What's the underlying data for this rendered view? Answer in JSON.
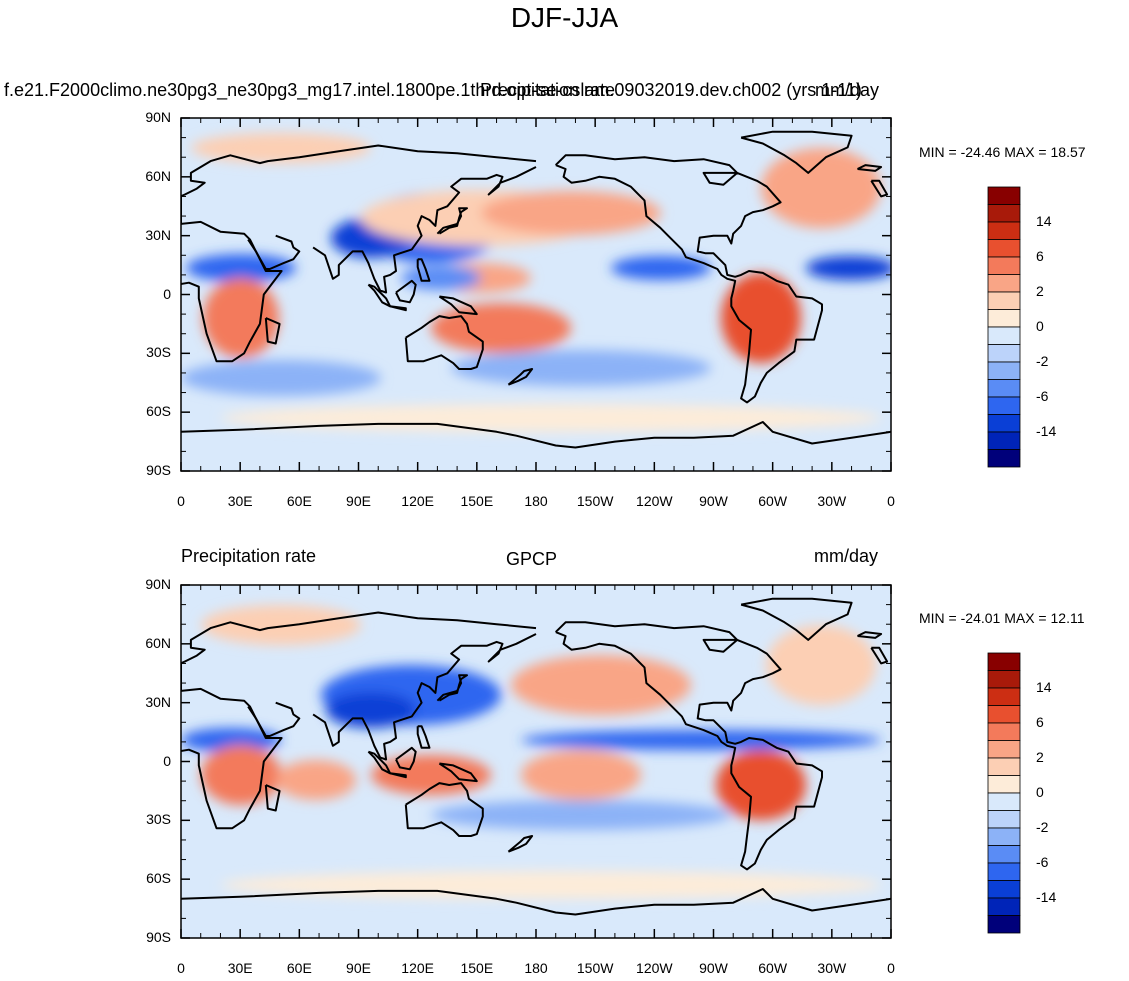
{
  "figure": {
    "title": "DJF-JJA"
  },
  "palette": [
    "#00007a",
    "#0024b8",
    "#0a3fd6",
    "#2e66f0",
    "#5a8cf5",
    "#8cb2f7",
    "#bcd3fa",
    "#d9e9fb",
    "#fdecd9",
    "#fccfb4",
    "#f9a586",
    "#f37a5b",
    "#e8502f",
    "#cc2e13",
    "#a81a0a",
    "#880000"
  ],
  "map_colors": {
    "ocean": "#d9e9fb",
    "coast": "#000000"
  },
  "chart_data": [
    {
      "type": "heatmap",
      "name": "model",
      "left_label": "f.e21.F2000climo.ne30pg3_ne30pg3_mg17.intel.1800pe.1thrd.opt-se-cslam.09032019.dev.ch002 (yrs 1-11)",
      "center_label": "Precipitation rate",
      "right_label": "mm/day",
      "min_max_text": "MIN = -24.46 MAX =  18.57",
      "min": -24.46,
      "max": 18.57,
      "x_ticks": [
        "0",
        "30E",
        "60E",
        "90E",
        "120E",
        "150E",
        "180",
        "150W",
        "120W",
        "90W",
        "60W",
        "30W",
        "0"
      ],
      "y_ticks": [
        "90N",
        "60N",
        "30N",
        "0",
        "30S",
        "60S",
        "90S"
      ],
      "colorbar_labels": [
        "14",
        "6",
        "2",
        "0",
        "-2",
        "-6",
        "-14"
      ]
    },
    {
      "type": "heatmap",
      "name": "obs",
      "left_label": "Precipitation rate",
      "center_label": "GPCP",
      "right_label": "mm/day",
      "min_max_text": "MIN = -24.01 MAX =  12.11",
      "min": -24.01,
      "max": 12.11,
      "x_ticks": [
        "0",
        "30E",
        "60E",
        "90E",
        "120E",
        "150E",
        "180",
        "150W",
        "120W",
        "90W",
        "60W",
        "30W",
        "0"
      ],
      "y_ticks": [
        "90N",
        "60N",
        "30N",
        "0",
        "30S",
        "60S",
        "90S"
      ],
      "colorbar_labels": [
        "14",
        "6",
        "2",
        "0",
        "-2",
        "-6",
        "-14"
      ]
    }
  ]
}
